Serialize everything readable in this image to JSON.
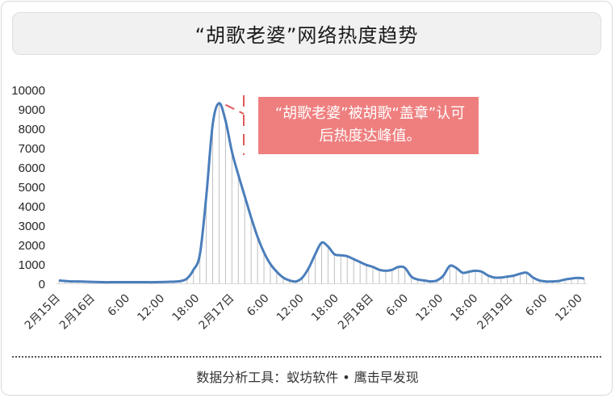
{
  "title": "“胡歌老婆”网络热度趋势",
  "annotation": "“胡歌老婆”被胡歌“盖章”认可后热度达峰值。",
  "footer": "数据分析工具：蚁坊软件 • 鹰击早发现",
  "colors": {
    "line": "#4a7ebb",
    "callout": "#ef7f7f",
    "dash": "#e05a5a",
    "drop": "#bfbfbf"
  },
  "chart_data": {
    "type": "line",
    "title": "“胡歌老婆”网络热度趋势",
    "xlabel": "",
    "ylabel": "",
    "ylim": [
      0,
      10000
    ],
    "yticks": [
      0,
      1000,
      2000,
      3000,
      4000,
      5000,
      6000,
      7000,
      8000,
      9000,
      10000
    ],
    "xticks": [
      "2月15日",
      "2月16日",
      "6:00",
      "12:00",
      "18:00",
      "2月17日",
      "6:00",
      "12:00",
      "18:00",
      "2月18日",
      "6:00",
      "12:00",
      "18:00",
      "2月19日",
      "6:00",
      "12:00"
    ],
    "grid": false,
    "series": [
      {
        "values": [
          150,
          120,
          100,
          100,
          90,
          80,
          70,
          60,
          60,
          60,
          60,
          60,
          60,
          60,
          60,
          60,
          70,
          80,
          90,
          120,
          250,
          700,
          1500,
          4500,
          8200,
          9300,
          8400,
          6800,
          5600,
          4500,
          3400,
          2400,
          1600,
          1000,
          600,
          300,
          150,
          100,
          300,
          800,
          1500,
          2100,
          1900,
          1500,
          1450,
          1400,
          1250,
          1100,
          950,
          850,
          700,
          650,
          700,
          850,
          800,
          350,
          200,
          150,
          100,
          150,
          400,
          900,
          800,
          550,
          600,
          650,
          600,
          400,
          300,
          300,
          350,
          400,
          500,
          550,
          300,
          150,
          100,
          100,
          120,
          200,
          250,
          280,
          250
        ]
      }
    ]
  }
}
